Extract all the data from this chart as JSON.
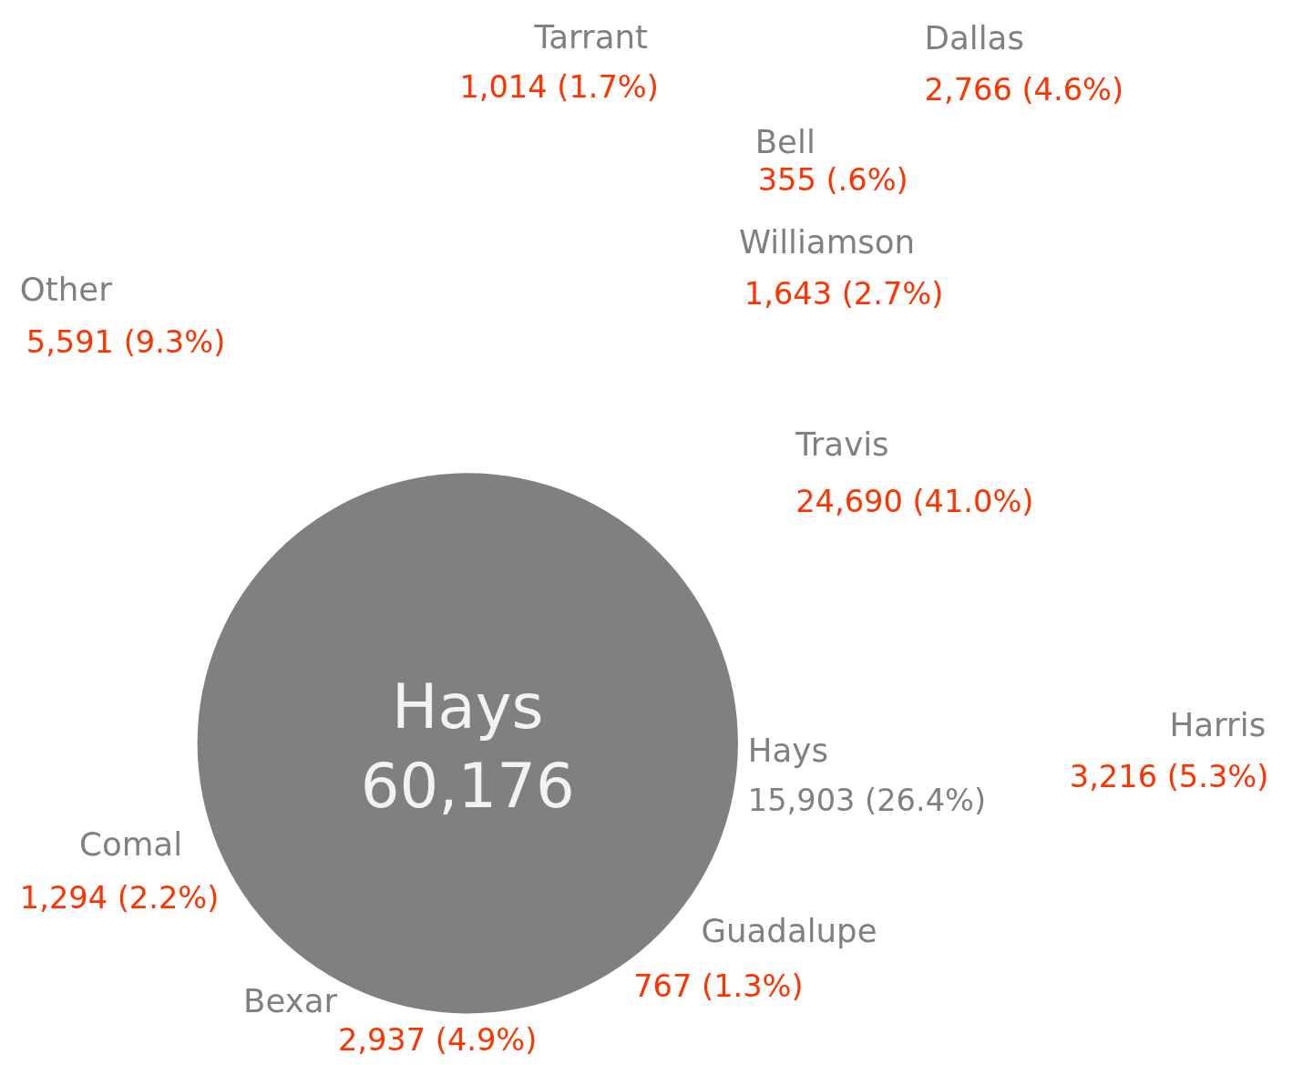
{
  "chart_data": {
    "type": "other",
    "title": "Hays",
    "totals": [
      "60,176"
    ],
    "color": "#808080",
    "categories": [
      "Tarrant",
      "Dallas",
      "Bell",
      "Williamson",
      "Other",
      "Travis",
      "Harris",
      "Hays",
      "Comal",
      "Guadalupe",
      "Bexar"
    ],
    "values": [
      1014,
      2766,
      355,
      1643,
      5591,
      24690,
      3216,
      15903,
      1294,
      767,
      2937
    ],
    "value_labels": [
      "1,014 (1.7%)",
      "2,766 (4.6%)",
      "355 (.6%)",
      "1,643 (2.7%)",
      "5,591 (9.3%)",
      "24,690 (41.0%)",
      "3,216 (5.3%)",
      "15,903 (26.4%)",
      "1,294 (2.2%)",
      "767 (1.3%)",
      "2,937 (4.9%)"
    ],
    "colors": [
      "#ff3300",
      "#ff3300",
      "#ff3300",
      "#ff3300",
      "#ff3300",
      "#ff3300",
      "#ff3300",
      "#808080",
      "#ff3300",
      "#ff3300",
      "#ff3300"
    ]
  }
}
